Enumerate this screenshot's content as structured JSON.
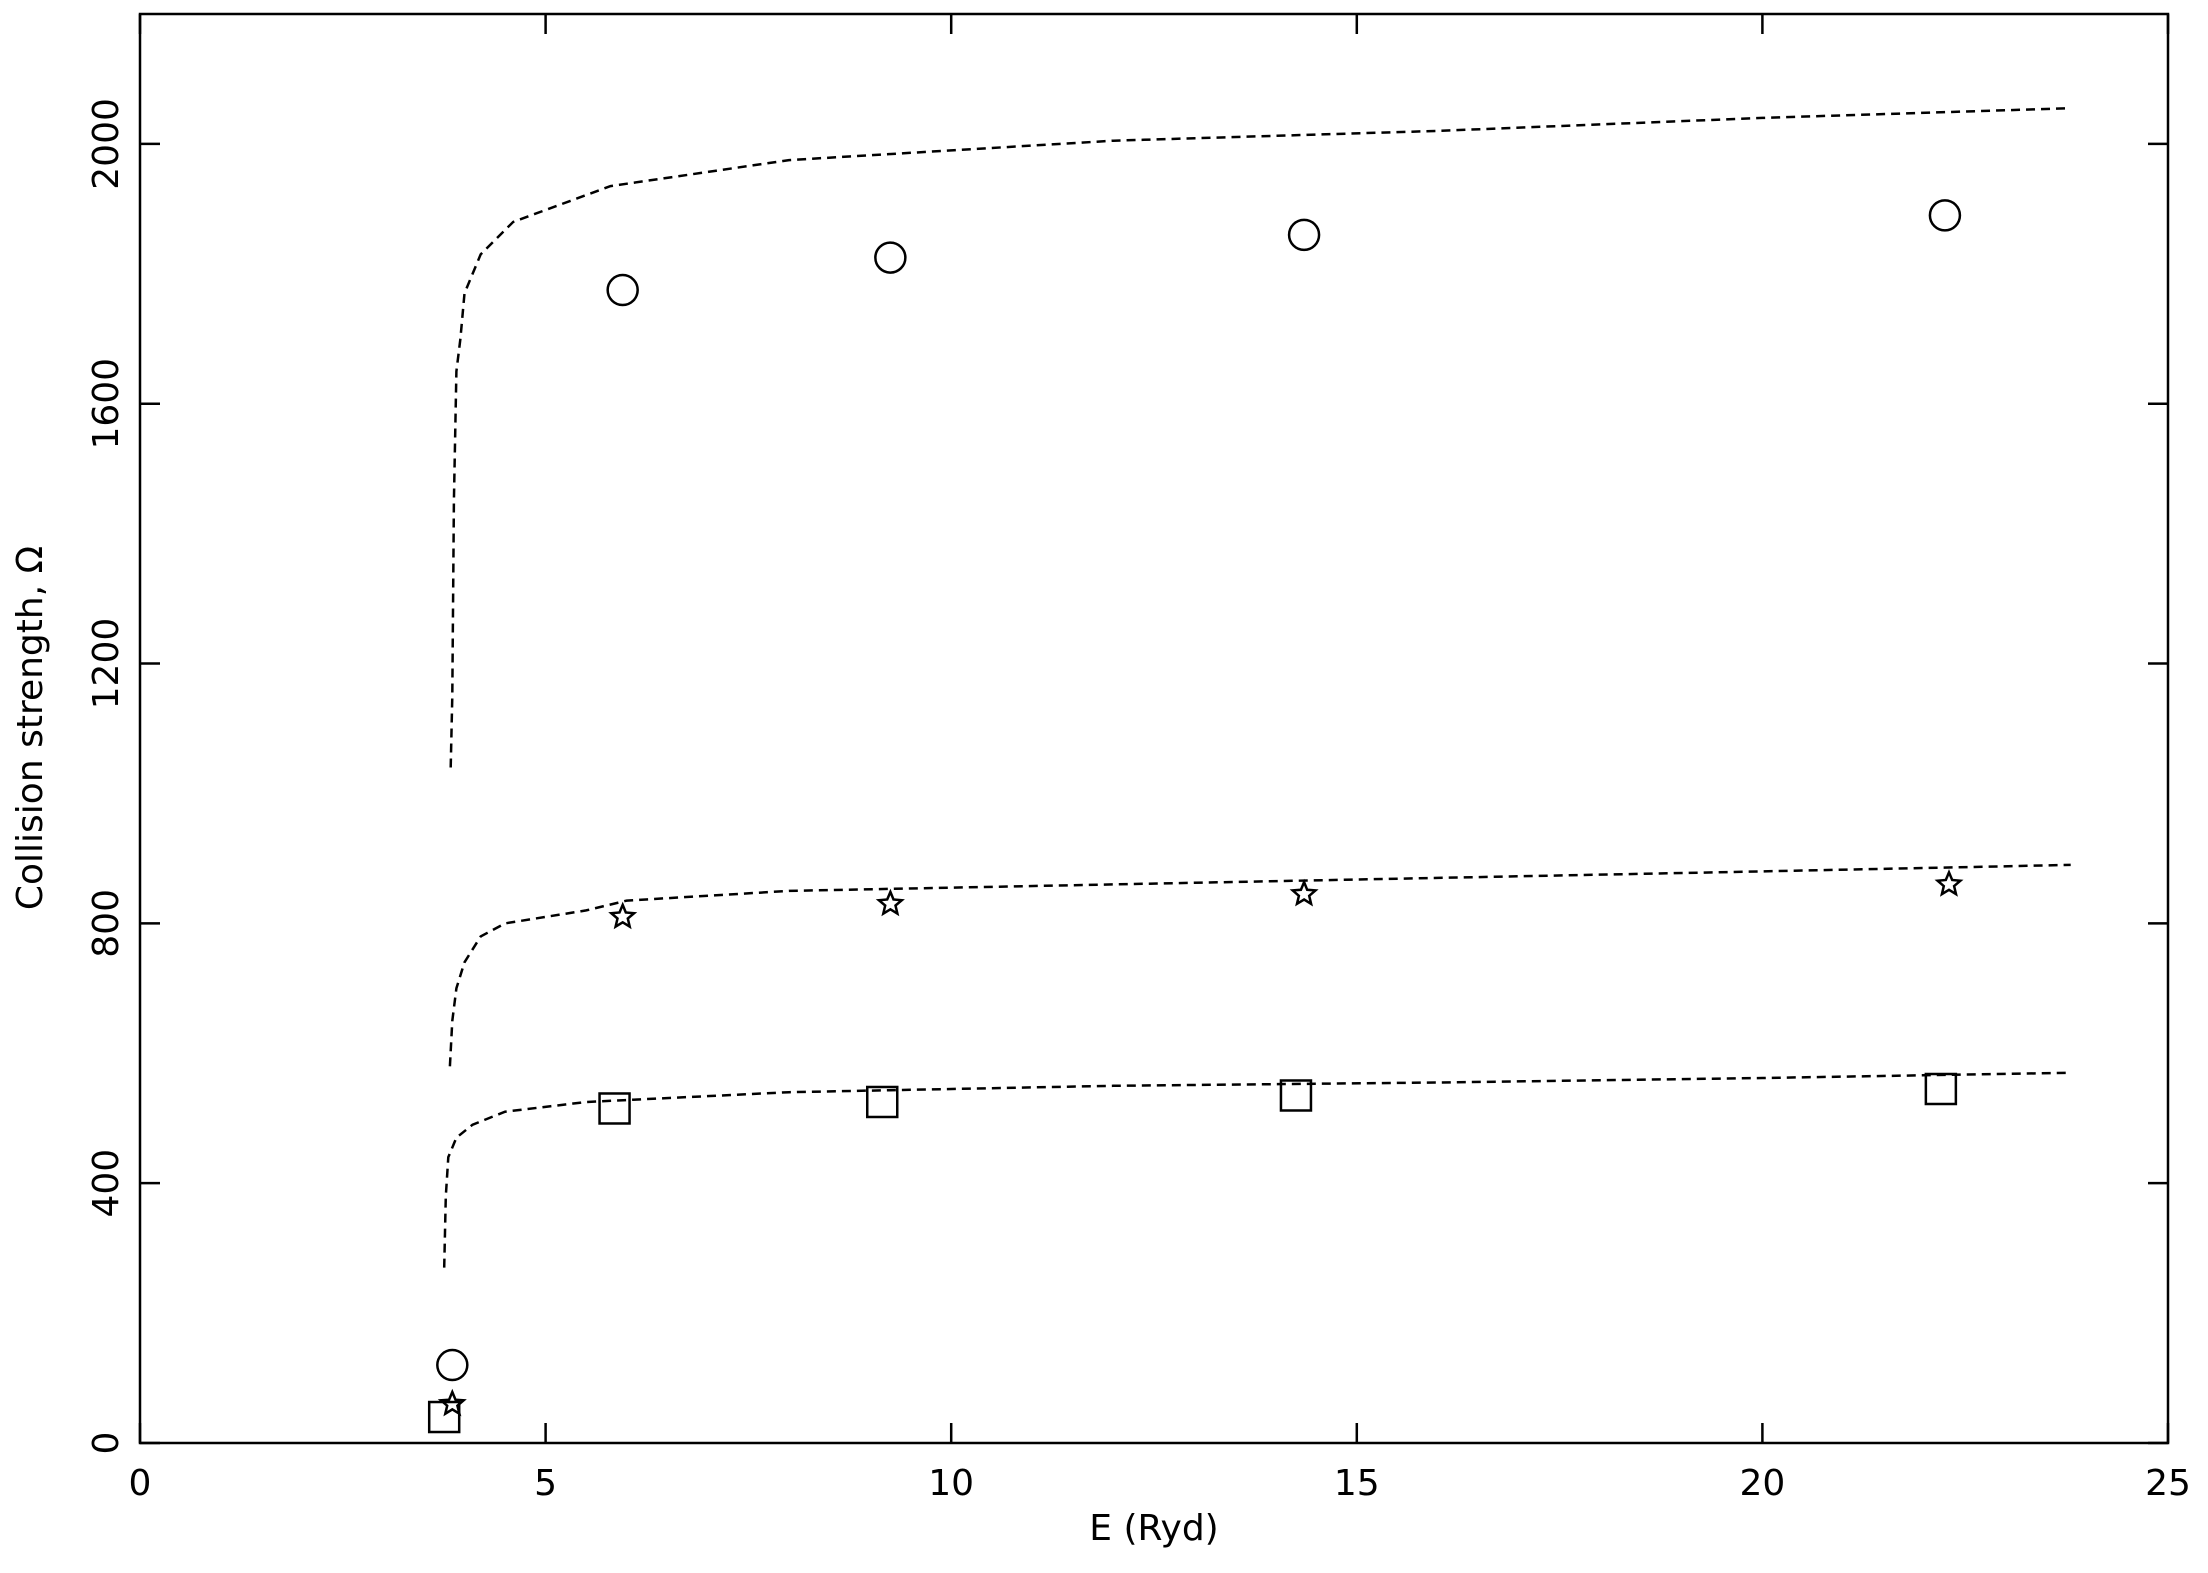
{
  "chart_data": {
    "type": "scatter",
    "x_label": "E (Ryd)",
    "y_label": "Collision strength, Ω",
    "xlim": [
      0,
      25
    ],
    "ylim": [
      0,
      2200
    ],
    "xticks": [
      0,
      5,
      10,
      15,
      20,
      25
    ],
    "yticks": [
      0,
      400,
      800,
      1200,
      1600,
      2000
    ],
    "color": "#000000",
    "series": [
      {
        "marker": "circle",
        "x": [
          3.85,
          5.95,
          9.25,
          14.35,
          22.25
        ],
        "values": [
          120,
          1775,
          1825,
          1860,
          1890
        ]
      },
      {
        "marker": "star",
        "x": [
          3.85,
          5.95,
          9.25,
          14.35,
          22.3
        ],
        "values": [
          60,
          810,
          830,
          845,
          860
        ]
      },
      {
        "marker": "square",
        "x": [
          3.75,
          5.85,
          9.15,
          14.25,
          22.2
        ],
        "values": [
          40,
          515,
          525,
          535,
          545
        ]
      },
      {
        "line": "dashed",
        "x": [
          3.83,
          3.85,
          3.87,
          3.9,
          3.95,
          4.0,
          4.2,
          4.6,
          5.8,
          8,
          12,
          16,
          20,
          23.8
        ],
        "values": [
          1040,
          1150,
          1450,
          1650,
          1700,
          1770,
          1830,
          1880,
          1935,
          1975,
          2005,
          2020,
          2040,
          2055
        ]
      },
      {
        "line": "dashed",
        "x": [
          3.82,
          3.85,
          3.9,
          4.0,
          4.2,
          4.5,
          5.5,
          6,
          8,
          12,
          16,
          20,
          23.8
        ],
        "values": [
          580,
          650,
          700,
          740,
          780,
          800,
          820,
          835,
          850,
          860,
          870,
          880,
          890
        ]
      },
      {
        "line": "dashed",
        "x": [
          3.75,
          3.77,
          3.8,
          3.9,
          4.1,
          4.5,
          5.5,
          8,
          12,
          16,
          20,
          23.8
        ],
        "values": [
          270,
          380,
          440,
          470,
          490,
          510,
          525,
          540,
          550,
          555,
          562,
          570
        ]
      }
    ]
  }
}
